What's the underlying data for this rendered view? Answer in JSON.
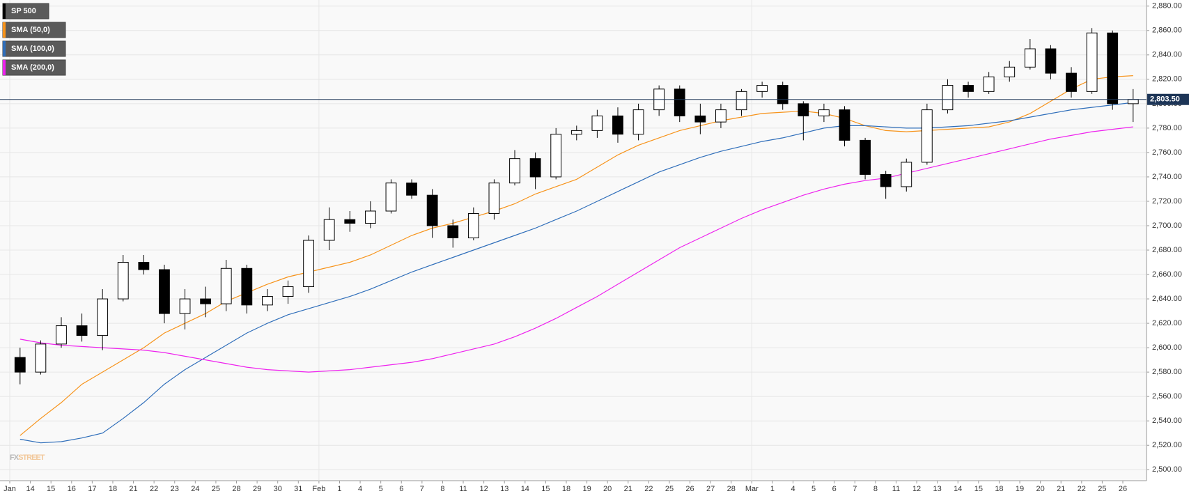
{
  "chart_data": {
    "type": "candlestick",
    "name": "SP 500",
    "up_color": "#ffffff",
    "down_color": "#000000",
    "categories": [
      "Jan",
      "14",
      "15",
      "16",
      "17",
      "18",
      "21",
      "22",
      "23",
      "24",
      "25",
      "28",
      "29",
      "30",
      "31",
      "Feb",
      "1",
      "4",
      "5",
      "6",
      "7",
      "8",
      "11",
      "12",
      "13",
      "14",
      "15",
      "18",
      "19",
      "20",
      "21",
      "22",
      "25",
      "26",
      "27",
      "28",
      "Mar",
      "1",
      "4",
      "5",
      "6",
      "7",
      "8",
      "11",
      "12",
      "13",
      "14",
      "15",
      "18",
      "19",
      "20",
      "21",
      "22",
      "25",
      "26"
    ],
    "open": [
      2592,
      2580,
      2603,
      2618,
      2610,
      2640,
      2670,
      2664,
      2628,
      2640,
      2636,
      2665,
      2635,
      2642,
      2650,
      2688,
      2705,
      2702,
      2712,
      2735,
      2725,
      2700,
      2690,
      2710,
      2735,
      2755,
      2740,
      2775,
      2778,
      2790,
      2775,
      2795,
      2812,
      2790,
      2785,
      2795,
      2810,
      2815,
      2800,
      2790,
      2795,
      2770,
      2742,
      2732,
      2752,
      2795,
      2815,
      2810,
      2822,
      2830,
      2845,
      2825,
      2810,
      2858,
      2800
    ],
    "high": [
      2600,
      2606,
      2625,
      2628,
      2648,
      2676,
      2676,
      2668,
      2648,
      2650,
      2672,
      2668,
      2648,
      2655,
      2692,
      2715,
      2712,
      2720,
      2738,
      2738,
      2730,
      2705,
      2715,
      2738,
      2762,
      2760,
      2780,
      2782,
      2795,
      2797,
      2800,
      2815,
      2815,
      2800,
      2800,
      2812,
      2818,
      2818,
      2802,
      2800,
      2798,
      2772,
      2745,
      2755,
      2800,
      2820,
      2818,
      2826,
      2835,
      2853,
      2848,
      2830,
      2862,
      2860,
      2812
    ],
    "low": [
      2570,
      2578,
      2600,
      2605,
      2598,
      2638,
      2660,
      2620,
      2615,
      2625,
      2630,
      2628,
      2630,
      2636,
      2645,
      2680,
      2695,
      2698,
      2710,
      2722,
      2690,
      2682,
      2688,
      2705,
      2733,
      2730,
      2738,
      2770,
      2772,
      2768,
      2770,
      2790,
      2785,
      2775,
      2780,
      2790,
      2805,
      2795,
      2770,
      2785,
      2765,
      2738,
      2722,
      2728,
      2750,
      2792,
      2805,
      2808,
      2818,
      2828,
      2820,
      2805,
      2808,
      2795,
      2785
    ],
    "close": [
      2580,
      2603,
      2618,
      2610,
      2640,
      2670,
      2664,
      2628,
      2640,
      2636,
      2665,
      2635,
      2642,
      2650,
      2688,
      2705,
      2702,
      2712,
      2735,
      2725,
      2700,
      2690,
      2710,
      2735,
      2755,
      2740,
      2775,
      2778,
      2790,
      2775,
      2795,
      2812,
      2790,
      2785,
      2795,
      2810,
      2815,
      2800,
      2790,
      2795,
      2770,
      2742,
      2732,
      2752,
      2795,
      2815,
      2810,
      2822,
      2830,
      2845,
      2825,
      2810,
      2858,
      2800,
      2803.5
    ],
    "series": [
      {
        "name": "SMA (50,0)",
        "color": "#f7931a",
        "values": [
          2528,
          2542,
          2555,
          2570,
          2580,
          2590,
          2600,
          2612,
          2620,
          2628,
          2638,
          2645,
          2652,
          2658,
          2662,
          2666,
          2670,
          2676,
          2684,
          2692,
          2698,
          2702,
          2707,
          2712,
          2718,
          2726,
          2732,
          2738,
          2748,
          2758,
          2766,
          2772,
          2778,
          2782,
          2786,
          2789,
          2792,
          2793,
          2794,
          2792,
          2788,
          2782,
          2778,
          2777,
          2778,
          2779,
          2780,
          2781,
          2785,
          2792,
          2802,
          2812,
          2820,
          2822,
          2823
        ]
      },
      {
        "name": "SMA (100,0)",
        "color": "#2f6eba",
        "values": [
          2525,
          2522,
          2523,
          2526,
          2530,
          2542,
          2555,
          2570,
          2582,
          2592,
          2602,
          2612,
          2620,
          2627,
          2632,
          2637,
          2642,
          2648,
          2655,
          2662,
          2668,
          2674,
          2680,
          2686,
          2692,
          2698,
          2705,
          2712,
          2720,
          2728,
          2736,
          2744,
          2750,
          2756,
          2761,
          2765,
          2769,
          2772,
          2776,
          2780,
          2782,
          2782,
          2781,
          2780,
          2780,
          2781,
          2782,
          2784,
          2786,
          2789,
          2792,
          2795,
          2797,
          2799,
          2801
        ]
      },
      {
        "name": "SMA (200,0)",
        "color": "#ee22ee",
        "values": [
          2607,
          2604,
          2602,
          2601,
          2600,
          2599,
          2598,
          2596,
          2593,
          2590,
          2587,
          2584,
          2582,
          2581,
          2580,
          2581,
          2582,
          2584,
          2586,
          2588,
          2591,
          2595,
          2599,
          2603,
          2609,
          2616,
          2624,
          2633,
          2642,
          2652,
          2662,
          2672,
          2682,
          2690,
          2698,
          2706,
          2713,
          2719,
          2725,
          2730,
          2734,
          2737,
          2739,
          2743,
          2747,
          2751,
          2755,
          2759,
          2763,
          2767,
          2771,
          2774,
          2777,
          2779,
          2781
        ]
      }
    ],
    "last_price": {
      "value": 2803.5,
      "label": "2,803.50"
    },
    "ylim": [
      2491,
      2885
    ],
    "yticks": [
      {
        "value": 2500,
        "label": "2,500.00"
      },
      {
        "value": 2520,
        "label": "2,520.00"
      },
      {
        "value": 2540,
        "label": "2,540.00"
      },
      {
        "value": 2560,
        "label": "2,560.00"
      },
      {
        "value": 2580,
        "label": "2,580.00"
      },
      {
        "value": 2600,
        "label": "2,600.00"
      },
      {
        "value": 2620,
        "label": "2,620.00"
      },
      {
        "value": 2640,
        "label": "2,640.00"
      },
      {
        "value": 2660,
        "label": "2,660.00"
      },
      {
        "value": 2680,
        "label": "2,680.00"
      },
      {
        "value": 2700,
        "label": "2,700.00"
      },
      {
        "value": 2720,
        "label": "2,720.00"
      },
      {
        "value": 2740,
        "label": "2,740.00"
      },
      {
        "value": 2760,
        "label": "2,760.00"
      },
      {
        "value": 2780,
        "label": "2,780.00"
      },
      {
        "value": 2800,
        "label": "2,800.00"
      },
      {
        "value": 2820,
        "label": "2,820.00"
      },
      {
        "value": 2840,
        "label": "2,840.00"
      },
      {
        "value": 2860,
        "label": "2,860.00"
      },
      {
        "value": 2880,
        "label": "2,880.00"
      }
    ],
    "grid": true,
    "watermark": {
      "prefix": "FX",
      "suffix": "STREET"
    }
  }
}
